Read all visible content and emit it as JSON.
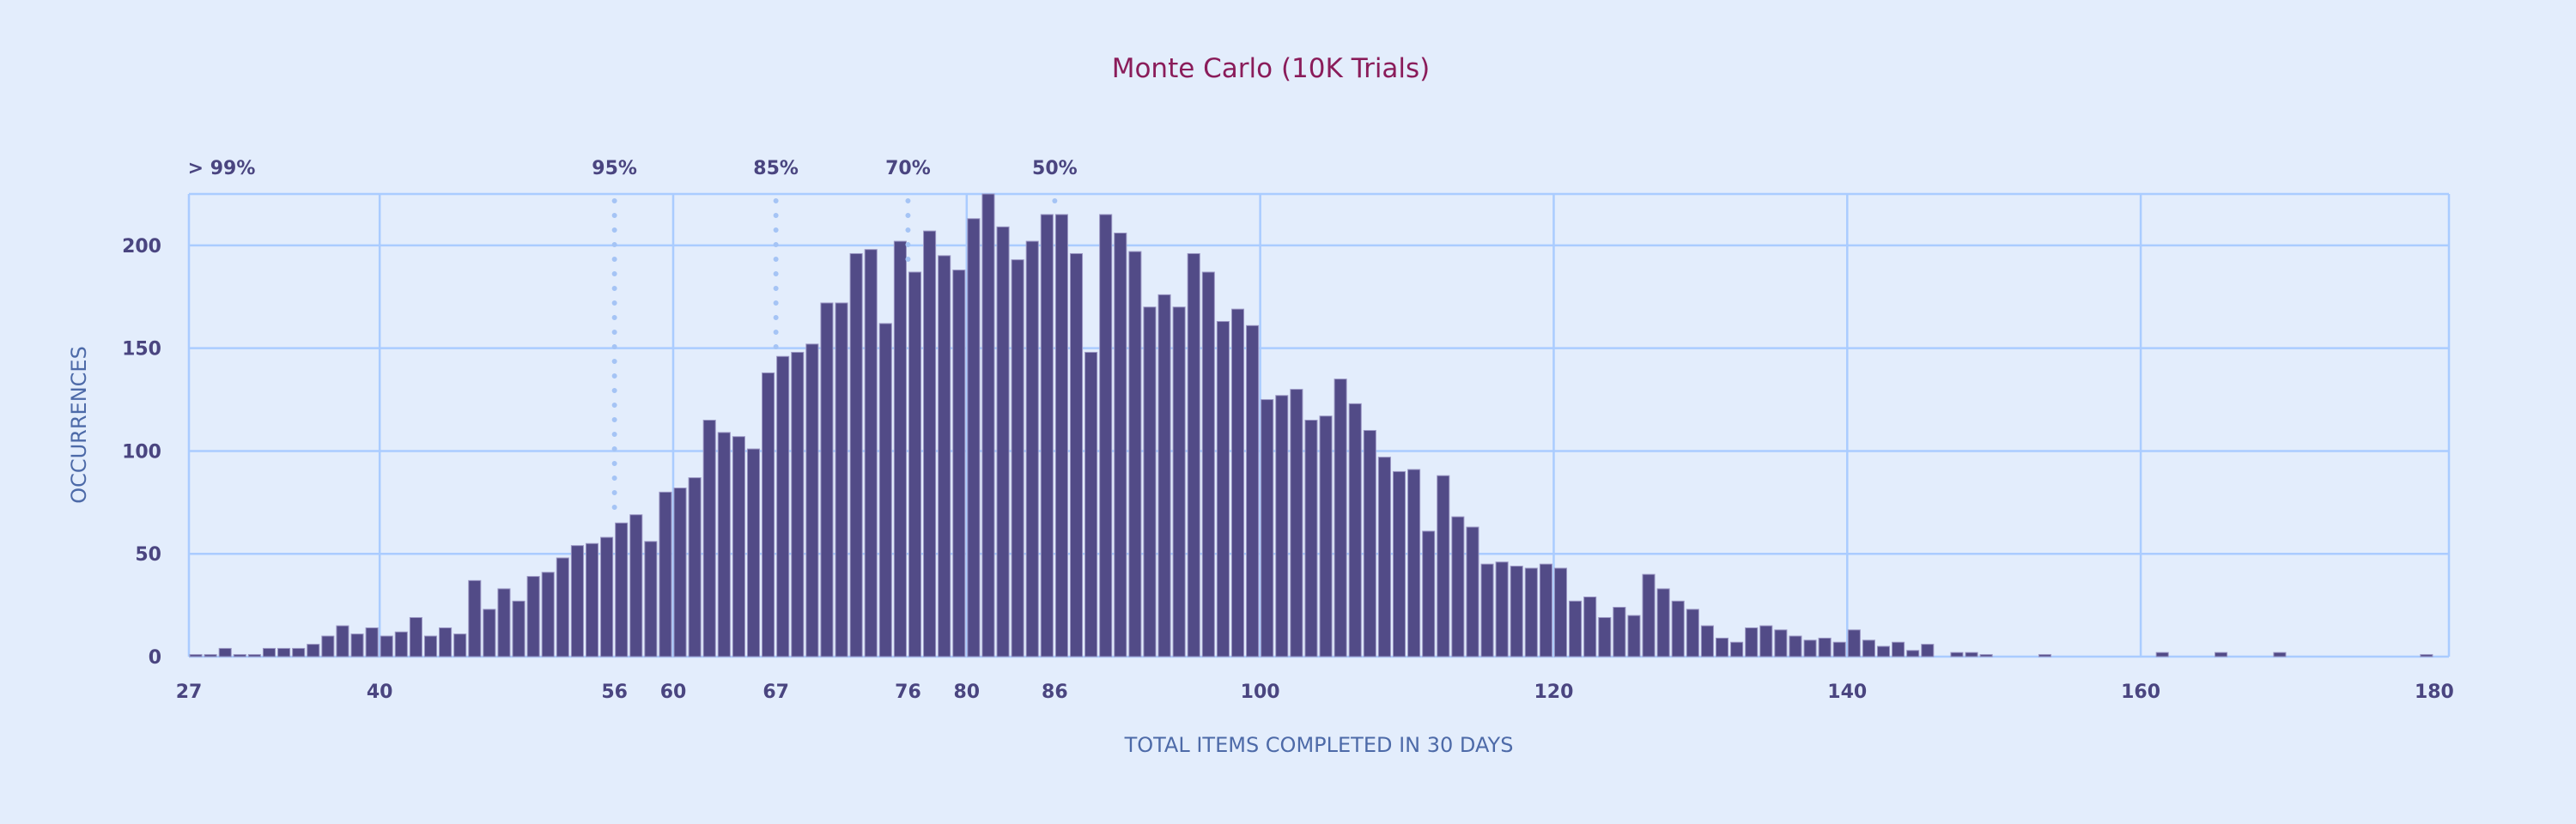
{
  "chart_data": {
    "type": "bar",
    "title": "Monte Carlo (10K Trials)",
    "xlabel": "TOTAL ITEMS COMPLETED IN 30 DAYS",
    "ylabel": "OCCURRENCES",
    "xlim": [
      27,
      180
    ],
    "ylim": [
      0,
      225
    ],
    "grid": true,
    "y_ticks": [
      "0",
      "50",
      "100",
      "150",
      "200"
    ],
    "x_ticks": [
      "27",
      "40",
      "56",
      "60",
      "67",
      "76",
      "80",
      "86",
      "100",
      "120",
      "140",
      "160",
      "180"
    ],
    "x_start": 27,
    "values": [
      1,
      1,
      4,
      1,
      1,
      4,
      4,
      4,
      6,
      10,
      15,
      11,
      14,
      10,
      12,
      19,
      10,
      14,
      11,
      37,
      23,
      33,
      27,
      39,
      41,
      48,
      54,
      55,
      58,
      65,
      69,
      56,
      80,
      82,
      87,
      115,
      109,
      107,
      101,
      138,
      146,
      148,
      152,
      172,
      172,
      196,
      198,
      162,
      202,
      187,
      207,
      195,
      188,
      213,
      225,
      209,
      193,
      202,
      215,
      215,
      196,
      148,
      215,
      206,
      197,
      170,
      176,
      170,
      196,
      187,
      163,
      169,
      161,
      125,
      127,
      130,
      115,
      117,
      135,
      123,
      110,
      97,
      90,
      91,
      61,
      88,
      68,
      63,
      45,
      46,
      44,
      43,
      45,
      43,
      27,
      29,
      19,
      24,
      20,
      40,
      33,
      27,
      23,
      15,
      9,
      7,
      14,
      15,
      13,
      10,
      8,
      9,
      7,
      13,
      8,
      5,
      7,
      3,
      6,
      0,
      2,
      2,
      1,
      0,
      0,
      0,
      1,
      0,
      0,
      0,
      0,
      0,
      0,
      0,
      2,
      0,
      0,
      0,
      2,
      0,
      0,
      0,
      2,
      0,
      0,
      0,
      0,
      0,
      0,
      0,
      0,
      0,
      1,
      0
    ],
    "percentiles": [
      {
        "label": "> 99%",
        "value": 27,
        "line": false
      },
      {
        "label": "95%",
        "value": 56,
        "line": true
      },
      {
        "label": "85%",
        "value": 67,
        "line": true
      },
      {
        "label": "70%",
        "value": 76,
        "line": true
      },
      {
        "label": "50%",
        "value": 86,
        "line": true
      }
    ],
    "colors": {
      "bar": "#524b87",
      "grid": "#aaccff",
      "title": "#8a1c5a",
      "background": "#e3edfc"
    }
  }
}
